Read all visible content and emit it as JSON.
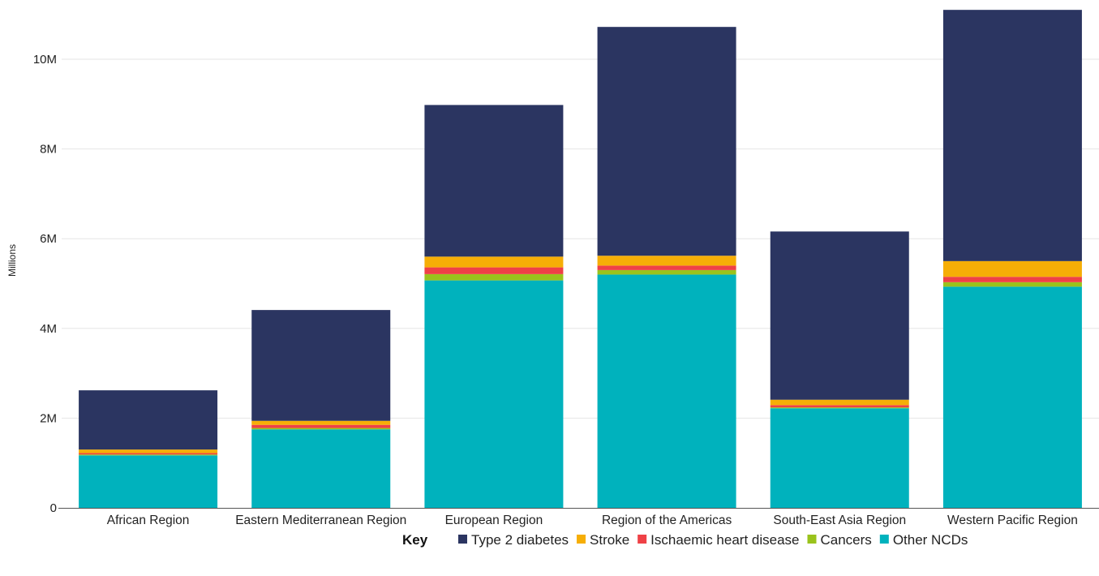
{
  "chart_data": {
    "type": "bar",
    "stacked": true,
    "title": "",
    "xlabel": "",
    "ylabel": "Millions",
    "ylim": [
      0,
      11.3
    ],
    "yticks": [
      0,
      2,
      4,
      6,
      8,
      10
    ],
    "ytick_labels": [
      "0",
      "2M",
      "4M",
      "6M",
      "8M",
      "10M"
    ],
    "grid": true,
    "categories": [
      "African Region",
      "Eastern Mediterranean Region",
      "European Region",
      "Region of the Americas",
      "South-East Asia Region",
      "Western Pacific Region"
    ],
    "series": [
      {
        "name": "Other NCDs",
        "color": "#00b2bd",
        "values": [
          1.17,
          1.75,
          5.07,
          5.2,
          2.22,
          4.93
        ]
      },
      {
        "name": "Cancers",
        "color": "#9ac31c",
        "values": [
          0.02,
          0.03,
          0.14,
          0.1,
          0.02,
          0.1
        ]
      },
      {
        "name": "Ischaemic heart disease",
        "color": "#ef4146",
        "values": [
          0.03,
          0.07,
          0.15,
          0.1,
          0.05,
          0.12
        ]
      },
      {
        "name": "Stroke",
        "color": "#f6ae06",
        "values": [
          0.08,
          0.09,
          0.24,
          0.22,
          0.12,
          0.35
        ]
      },
      {
        "name": "Type 2 diabetes",
        "color": "#2b3561",
        "values": [
          1.32,
          2.47,
          3.38,
          5.1,
          3.75,
          5.6
        ]
      }
    ],
    "legend": {
      "title": "Key",
      "placement": "bottom-right",
      "order": [
        "Type 2 diabetes",
        "Stroke",
        "Ischaemic heart disease",
        "Cancers",
        "Other NCDs"
      ]
    }
  }
}
